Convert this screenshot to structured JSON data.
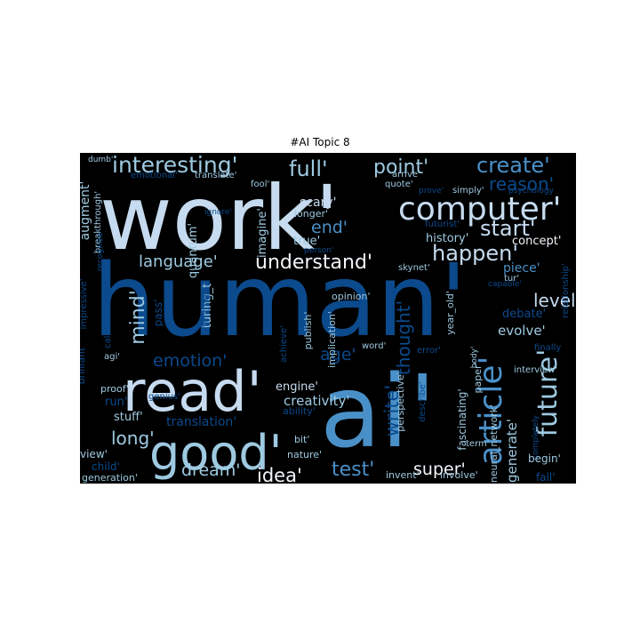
{
  "title": "#AI Topic 8",
  "words": [
    {
      "text": "work'",
      "tone": "pale"
    },
    {
      "text": "human'",
      "tone": "navy"
    },
    {
      "text": "ai'",
      "tone": "mid"
    },
    {
      "text": "read'",
      "tone": "pale"
    },
    {
      "text": "good'",
      "tone": "light"
    },
    {
      "text": "computer'",
      "tone": "pale"
    },
    {
      "text": "article'",
      "tone": "mid"
    },
    {
      "text": "future'",
      "tone": "light"
    },
    {
      "text": "interesting'",
      "tone": "light"
    },
    {
      "text": "create'",
      "tone": "mid"
    },
    {
      "text": "full'",
      "tone": "light"
    },
    {
      "text": "point'",
      "tone": "light"
    },
    {
      "text": "reason'",
      "tone": "navy"
    },
    {
      "text": "start'",
      "tone": "pale"
    },
    {
      "text": "happen'",
      "tone": "pale"
    },
    {
      "text": "understand'",
      "tone": "white"
    },
    {
      "text": "language'",
      "tone": "light"
    },
    {
      "text": "end'",
      "tone": "mid"
    },
    {
      "text": "mind'",
      "tone": "light"
    },
    {
      "text": "emotion'",
      "tone": "navy"
    },
    {
      "text": "age'",
      "tone": "navy"
    },
    {
      "text": "thought'",
      "tone": "navy"
    },
    {
      "text": "write'",
      "tone": "navy"
    },
    {
      "text": "level'",
      "tone": "pale"
    },
    {
      "text": "test'",
      "tone": "mid"
    },
    {
      "text": "idea'",
      "tone": "white"
    },
    {
      "text": "super'",
      "tone": "white"
    },
    {
      "text": "dream'",
      "tone": "light"
    },
    {
      "text": "long'",
      "tone": "light"
    },
    {
      "text": "creativity'",
      "tone": "light"
    },
    {
      "text": "engine'",
      "tone": "pale"
    },
    {
      "text": "debate'",
      "tone": "navy"
    },
    {
      "text": "evolve'",
      "tone": "light"
    },
    {
      "text": "generate'",
      "tone": "light"
    },
    {
      "text": "augment'",
      "tone": "light"
    },
    {
      "text": "quantum'",
      "tone": "light"
    },
    {
      "text": "turing_t",
      "tone": "light"
    },
    {
      "text": "imagine'",
      "tone": "light"
    },
    {
      "text": "scary'",
      "tone": "pale"
    },
    {
      "text": "longer'",
      "tone": "light"
    },
    {
      "text": "true'",
      "tone": "light"
    },
    {
      "text": "history'",
      "tone": "light"
    },
    {
      "text": "concept'",
      "tone": "white"
    },
    {
      "text": "piece'",
      "tone": "mid"
    },
    {
      "text": "translation'",
      "tone": "navy"
    },
    {
      "text": "stuff'",
      "tone": "light"
    },
    {
      "text": "run'",
      "tone": "navy"
    },
    {
      "text": "view'",
      "tone": "light"
    },
    {
      "text": "child'",
      "tone": "navy"
    },
    {
      "text": "generation'",
      "tone": "light"
    },
    {
      "text": "breakthrough'",
      "tone": "light"
    },
    {
      "text": "dumb'",
      "tone": "light"
    },
    {
      "text": "emotional'",
      "tone": "navy"
    },
    {
      "text": "translate'",
      "tone": "light"
    },
    {
      "text": "fool'",
      "tone": "light"
    },
    {
      "text": "quote'",
      "tone": "light"
    },
    {
      "text": "arrive'",
      "tone": "light"
    },
    {
      "text": "prove'",
      "tone": "navy"
    },
    {
      "text": "simply'",
      "tone": "light"
    },
    {
      "text": "psychology",
      "tone": "navy"
    },
    {
      "text": "ignore'",
      "tone": "navy"
    },
    {
      "text": "futurist'",
      "tone": "navy"
    },
    {
      "text": "person'",
      "tone": "navy"
    },
    {
      "text": "skynet'",
      "tone": "light"
    },
    {
      "text": "tur'",
      "tone": "light"
    },
    {
      "text": "capable'",
      "tone": "navy"
    },
    {
      "text": "opinion'",
      "tone": "light"
    },
    {
      "text": "recognize'",
      "tone": "navy"
    },
    {
      "text": "impressive'",
      "tone": "navy"
    },
    {
      "text": "pass'",
      "tone": "navy"
    },
    {
      "text": "thinking'",
      "tone": "navy"
    },
    {
      "text": "publish'",
      "tone": "light"
    },
    {
      "text": "implication'",
      "tone": "light"
    },
    {
      "text": "year_old'",
      "tone": "light"
    },
    {
      "text": "relationship'",
      "tone": "navy"
    },
    {
      "text": "call'",
      "tone": "navy"
    },
    {
      "text": "agi'",
      "tone": "light"
    },
    {
      "text": "brilliant'",
      "tone": "navy"
    },
    {
      "text": "achieve'",
      "tone": "navy"
    },
    {
      "text": "word'",
      "tone": "light"
    },
    {
      "text": "error'",
      "tone": "navy"
    },
    {
      "text": "finally",
      "tone": "navy"
    },
    {
      "text": "interview'",
      "tone": "light"
    },
    {
      "text": "proof'",
      "tone": "light"
    },
    {
      "text": "genius'",
      "tone": "navy"
    },
    {
      "text": "ability'",
      "tone": "navy"
    },
    {
      "text": "perspective'",
      "tone": "light"
    },
    {
      "text": "describe'",
      "tone": "navy"
    },
    {
      "text": "fascinating'",
      "tone": "light"
    },
    {
      "text": "paper'",
      "tone": "light"
    },
    {
      "text": "body'",
      "tone": "light"
    },
    {
      "text": "neural_network'",
      "tone": "light"
    },
    {
      "text": "completely",
      "tone": "navy"
    },
    {
      "text": "term'",
      "tone": "light"
    },
    {
      "text": "bit'",
      "tone": "light"
    },
    {
      "text": "nature'",
      "tone": "light"
    },
    {
      "text": "begin'",
      "tone": "light"
    },
    {
      "text": "invent'",
      "tone": "light"
    },
    {
      "text": "involve'",
      "tone": "light"
    },
    {
      "text": "fall'",
      "tone": "navy"
    }
  ],
  "colors": {
    "background": "#000000",
    "white": "#f2f6fb",
    "pale": "#c6dbef",
    "light": "#9ecae1",
    "mid": "#4a90c8",
    "navy": "#0b4a8c"
  }
}
